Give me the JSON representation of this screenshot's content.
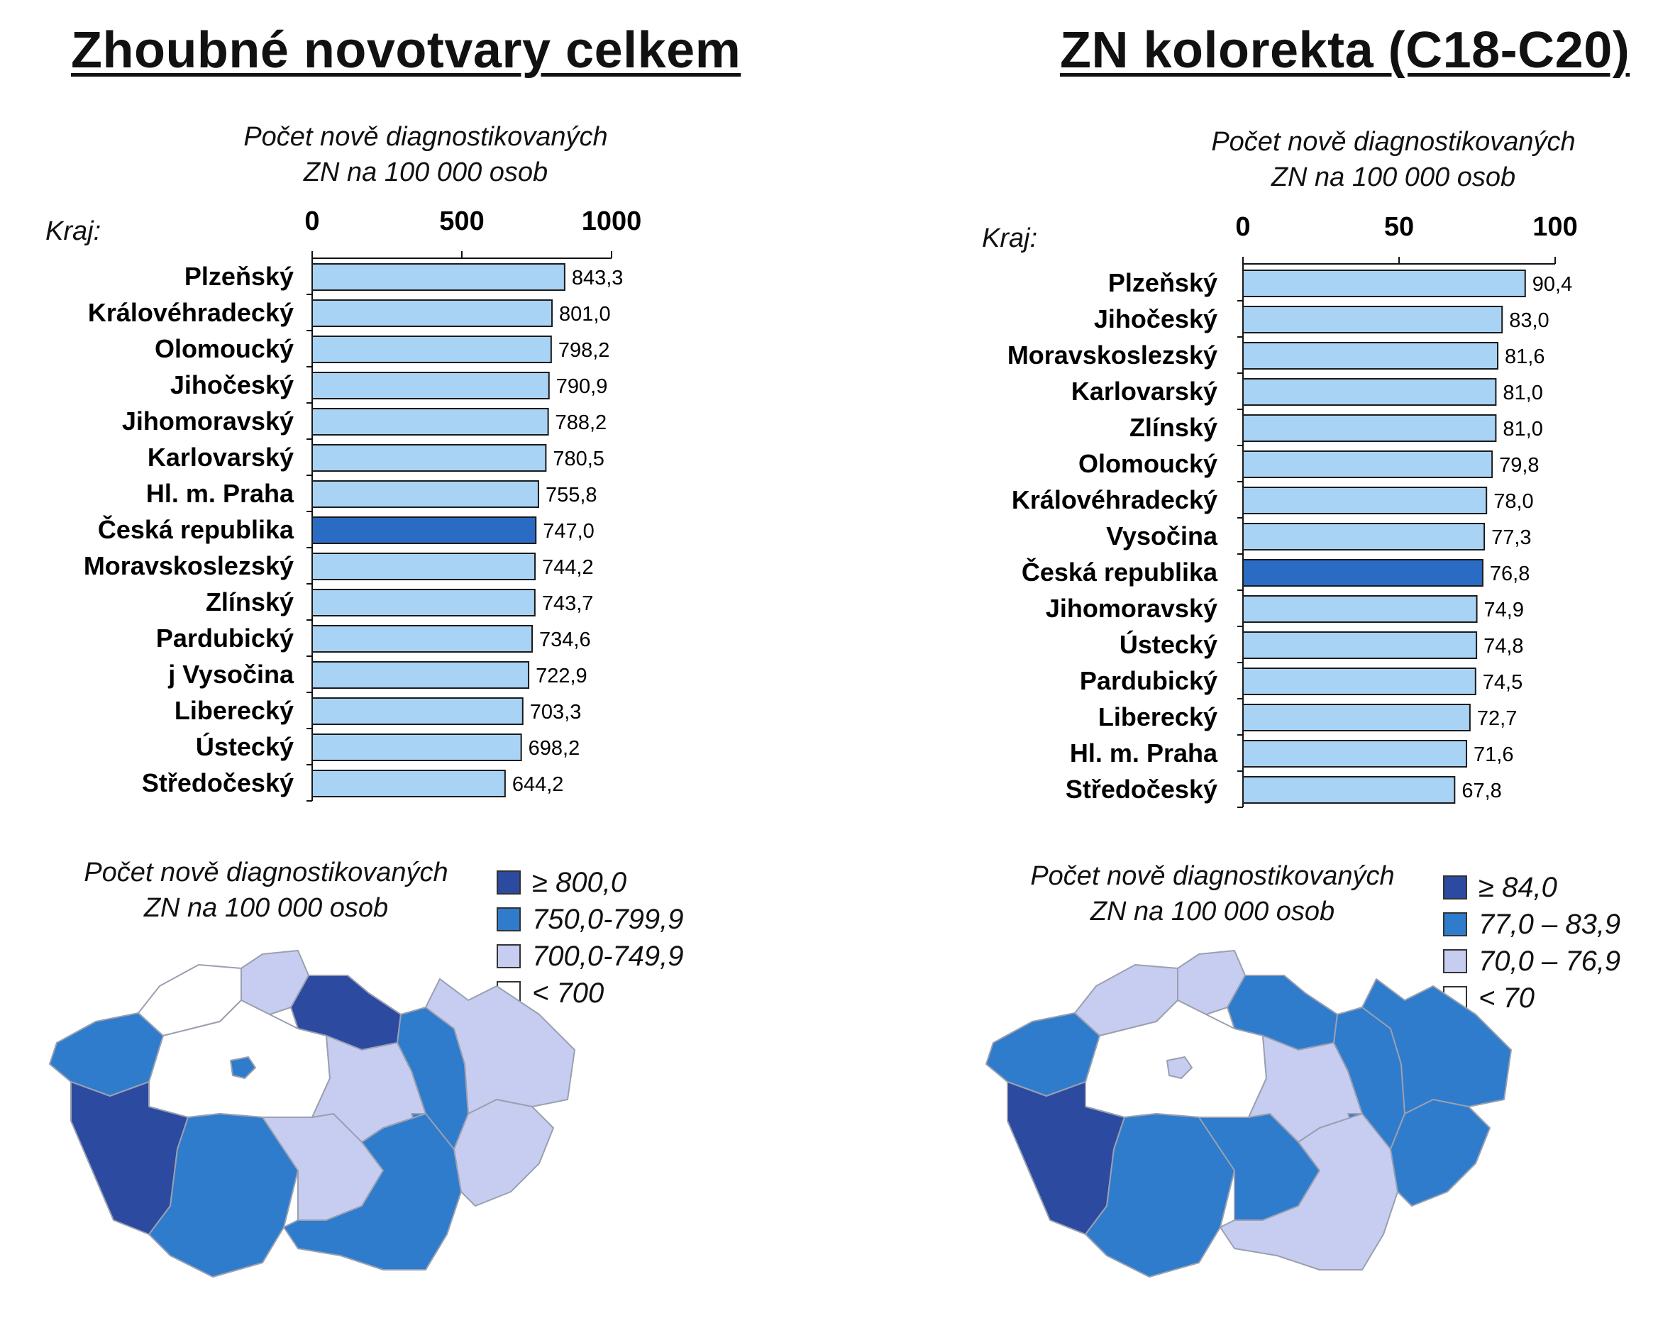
{
  "panels": [
    {
      "title": "Zhoubné novotvary celkem",
      "axis_caption_line1": "Počet nově diagnostikovaných",
      "axis_caption_line2": "ZN na 100 000 osob",
      "kraj_label": "Kraj:",
      "chart_data": {
        "type": "bar",
        "orientation": "horizontal",
        "categories": [
          "Plzeňský",
          "Královéhradecký",
          "Olomoucký",
          "Jihočeský",
          "Jihomoravský",
          "Karlovarský",
          "Hl. m. Praha",
          "Česká republika",
          "Moravskoslezský",
          "Zlínský",
          "Pardubický",
          "j Vysočina",
          "Liberecký",
          "Ústecký",
          "Středočeský"
        ],
        "values": [
          843.3,
          801.0,
          798.2,
          790.9,
          788.2,
          780.5,
          755.8,
          747.0,
          744.2,
          743.7,
          734.6,
          722.9,
          703.3,
          698.2,
          644.2
        ],
        "value_labels": [
          "843,3",
          "801,0",
          "798,2",
          "790,9",
          "788,2",
          "780,5",
          "755,8",
          "747,0",
          "744,2",
          "743,7",
          "734,6",
          "722,9",
          "703,3",
          "698,2",
          "644,2"
        ],
        "highlight": "Česká republika",
        "xlim": [
          0,
          1000
        ],
        "ticks": [
          0,
          500,
          1000
        ],
        "tick_labels": [
          "0",
          "500",
          "1000"
        ],
        "axis_position": "top",
        "grid": false
      },
      "map_caption_line1": "Počet nově diagnostikovaných",
      "map_caption_line2": "ZN na 100 000 osob",
      "legend": [
        {
          "label": "≥ 800,0",
          "color": "#2c4aa0"
        },
        {
          "label": "750,0-799,9",
          "color": "#2f7ccc"
        },
        {
          "label": "700,0-749,9",
          "color": "#c7cdf0"
        },
        {
          "label": "< 700",
          "color": "#ffffff"
        }
      ],
      "map_regions": {
        "karlovarsky": 1,
        "ustecky": 3,
        "liberecky": 2,
        "kralovehradecky": 0,
        "stredocesky": 3,
        "praha": 1,
        "plzensky": 0,
        "jihocesky": 1,
        "vysocina": 2,
        "pardubicky": 2,
        "olomoucky": 1,
        "moravskoslezsky": 2,
        "jihomoravsky": 1,
        "zlinsky": 2
      }
    },
    {
      "title": "ZN kolorekta (C18-C20)",
      "axis_caption_line1": "Počet nově diagnostikovaných",
      "axis_caption_line2": "ZN na 100 000 osob",
      "kraj_label": "Kraj:",
      "chart_data": {
        "type": "bar",
        "orientation": "horizontal",
        "categories": [
          "Plzeňský",
          "Jihočeský",
          "Moravskoslezský",
          "Karlovarský",
          "Zlínský",
          "Olomoucký",
          "Královéhradecký",
          "Vysočina",
          "Česká republika",
          "Jihomoravský",
          "Ústecký",
          "Pardubický",
          "Liberecký",
          "Hl. m. Praha",
          "Středočeský"
        ],
        "values": [
          90.4,
          83.0,
          81.6,
          81.0,
          81.0,
          79.8,
          78.0,
          77.3,
          76.8,
          74.9,
          74.8,
          74.5,
          72.7,
          71.6,
          67.8
        ],
        "value_labels": [
          "90,4",
          "83,0",
          "81,6",
          "81,0",
          "81,0",
          "79,8",
          "78,0",
          "77,3",
          "76,8",
          "74,9",
          "74,8",
          "74,5",
          "72,7",
          "71,6",
          "67,8"
        ],
        "highlight": "Česká republika",
        "xlim": [
          0,
          100
        ],
        "ticks": [
          0,
          50,
          100
        ],
        "tick_labels": [
          "0",
          "50",
          "100"
        ],
        "axis_position": "top",
        "grid": false
      },
      "map_caption_line1": "Počet nově diagnostikovaných",
      "map_caption_line2": "ZN na 100 000 osob",
      "legend": [
        {
          "label": "≥ 84,0",
          "color": "#2c4aa0"
        },
        {
          "label": "77,0 – 83,9",
          "color": "#2f7ccc"
        },
        {
          "label": "70,0 – 76,9",
          "color": "#c7cdf0"
        },
        {
          "label": "< 70",
          "color": "#ffffff"
        }
      ],
      "map_regions": {
        "karlovarsky": 1,
        "ustecky": 2,
        "liberecky": 2,
        "kralovehradecky": 1,
        "stredocesky": 3,
        "praha": 2,
        "plzensky": 0,
        "jihocesky": 1,
        "vysocina": 1,
        "pardubicky": 2,
        "olomoucky": 1,
        "moravskoslezsky": 1,
        "jihomoravsky": 2,
        "zlinsky": 1
      }
    }
  ],
  "colors": {
    "bar": "#a9d3f5",
    "bar_highlight": "#2a6bc4",
    "bar_stroke": "#1a1a1a",
    "map_border": "#9aa0b0"
  }
}
